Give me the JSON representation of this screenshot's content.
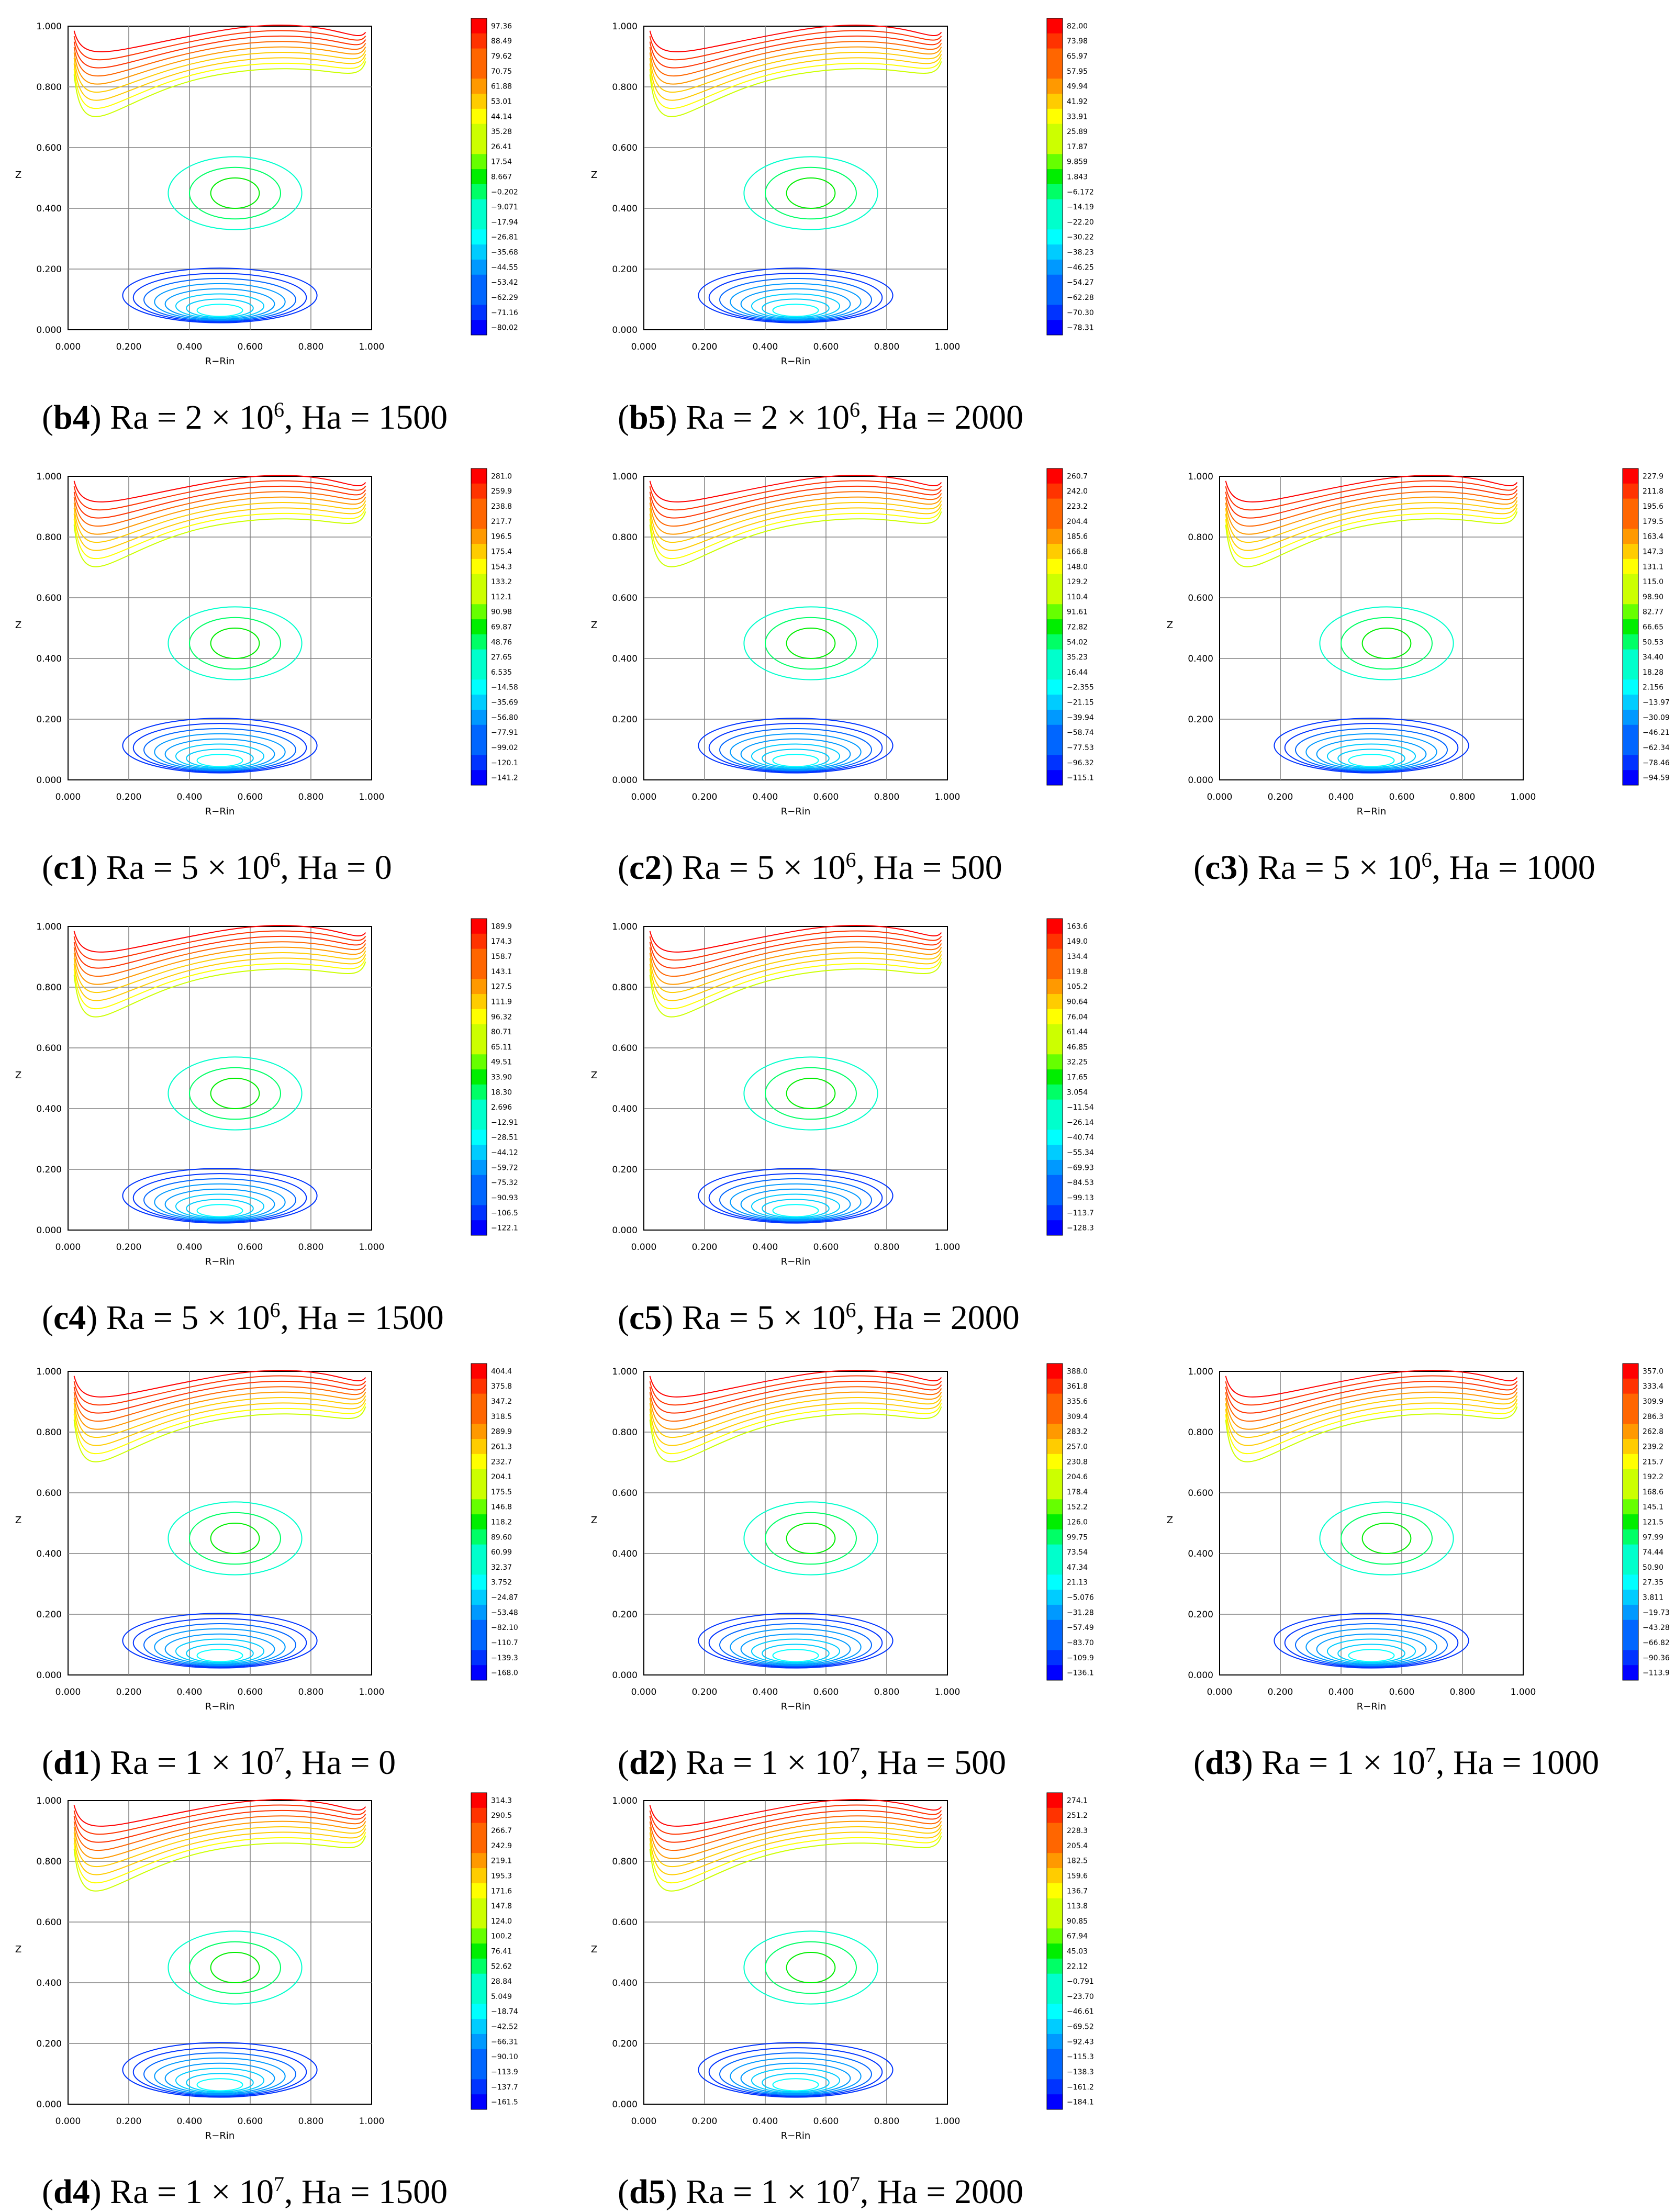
{
  "common": {
    "axis_x_label": "R−Rin",
    "axis_y_label": "Z",
    "ticks": [
      "0.000",
      "0.200",
      "0.400",
      "0.600",
      "0.800",
      "1.000"
    ],
    "colors": {
      "scale": [
        "#0000ff",
        "#0033ff",
        "#0066ff",
        "#0099ff",
        "#00ccff",
        "#00ffff",
        "#00ffcc",
        "#00ff66",
        "#00ee00",
        "#66ff00",
        "#ccff00",
        "#ffff00",
        "#ffcc00",
        "#ff9900",
        "#ff6600",
        "#ff3300",
        "#ff0000"
      ],
      "grid": "#808080"
    }
  },
  "chart_data": [
    {
      "id": "b4",
      "type": "contour",
      "caption": {
        "label": "b4",
        "ra_base": "2",
        "ra_exp": "6",
        "ha": "1500"
      },
      "legend": [
        "97.36",
        "88.49",
        "79.62",
        "70.75",
        "61.88",
        "53.01",
        "44.14",
        "35.28",
        "26.41",
        "17.54",
        "8.667",
        "−0.202",
        "−9.071",
        "−17.94",
        "−26.81",
        "−35.68",
        "−44.55",
        "−53.42",
        "−62.29",
        "−71.16",
        "−80.02"
      ],
      "xlim": [
        0,
        1
      ],
      "ylim": [
        0,
        1
      ]
    },
    {
      "id": "b5",
      "type": "contour",
      "caption": {
        "label": "b5",
        "ra_base": "2",
        "ra_exp": "6",
        "ha": "2000"
      },
      "legend": [
        "82.00",
        "73.98",
        "65.97",
        "57.95",
        "49.94",
        "41.92",
        "33.91",
        "25.89",
        "17.87",
        "9.859",
        "1.843",
        "−6.172",
        "−14.19",
        "−22.20",
        "−30.22",
        "−38.23",
        "−46.25",
        "−54.27",
        "−62.28",
        "−70.30",
        "−78.31"
      ],
      "xlim": [
        0,
        1
      ],
      "ylim": [
        0,
        1
      ]
    },
    {
      "id": "c1",
      "type": "contour",
      "caption": {
        "label": "c1",
        "ra_base": "5",
        "ra_exp": "6",
        "ha": "0"
      },
      "legend": [
        "281.0",
        "259.9",
        "238.8",
        "217.7",
        "196.5",
        "175.4",
        "154.3",
        "133.2",
        "112.1",
        "90.98",
        "69.87",
        "48.76",
        "27.65",
        "6.535",
        "−14.58",
        "−35.69",
        "−56.80",
        "−77.91",
        "−99.02",
        "−120.1",
        "−141.2"
      ],
      "xlim": [
        0,
        1
      ],
      "ylim": [
        0,
        1
      ]
    },
    {
      "id": "c2",
      "type": "contour",
      "caption": {
        "label": "c2",
        "ra_base": "5",
        "ra_exp": "6",
        "ha": "500"
      },
      "legend": [
        "260.7",
        "242.0",
        "223.2",
        "204.4",
        "185.6",
        "166.8",
        "148.0",
        "129.2",
        "110.4",
        "91.61",
        "72.82",
        "54.02",
        "35.23",
        "16.44",
        "−2.355",
        "−21.15",
        "−39.94",
        "−58.74",
        "−77.53",
        "−96.32",
        "−115.1"
      ],
      "xlim": [
        0,
        1
      ],
      "ylim": [
        0,
        1
      ]
    },
    {
      "id": "c3",
      "type": "contour",
      "caption": {
        "label": "c3",
        "ra_base": "5",
        "ra_exp": "6",
        "ha": "1000"
      },
      "legend": [
        "227.9",
        "211.8",
        "195.6",
        "179.5",
        "163.4",
        "147.3",
        "131.1",
        "115.0",
        "98.90",
        "82.77",
        "66.65",
        "50.53",
        "34.40",
        "18.28",
        "2.156",
        "−13.97",
        "−30.09",
        "−46.21",
        "−62.34",
        "−78.46",
        "−94.59"
      ],
      "xlim": [
        0,
        1
      ],
      "ylim": [
        0,
        1
      ]
    },
    {
      "id": "c4",
      "type": "contour",
      "caption": {
        "label": "c4",
        "ra_base": "5",
        "ra_exp": "6",
        "ha": "1500"
      },
      "legend": [
        "189.9",
        "174.3",
        "158.7",
        "143.1",
        "127.5",
        "111.9",
        "96.32",
        "80.71",
        "65.11",
        "49.51",
        "33.90",
        "18.30",
        "2.696",
        "−12.91",
        "−28.51",
        "−44.12",
        "−59.72",
        "−75.32",
        "−90.93",
        "−106.5",
        "−122.1"
      ],
      "xlim": [
        0,
        1
      ],
      "ylim": [
        0,
        1
      ]
    },
    {
      "id": "c5",
      "type": "contour",
      "caption": {
        "label": "c5",
        "ra_base": "5",
        "ra_exp": "6",
        "ha": "2000"
      },
      "legend": [
        "163.6",
        "149.0",
        "134.4",
        "119.8",
        "105.2",
        "90.64",
        "76.04",
        "61.44",
        "46.85",
        "32.25",
        "17.65",
        "3.054",
        "−11.54",
        "−26.14",
        "−40.74",
        "−55.34",
        "−69.93",
        "−84.53",
        "−99.13",
        "−113.7",
        "−128.3"
      ],
      "xlim": [
        0,
        1
      ],
      "ylim": [
        0,
        1
      ]
    },
    {
      "id": "d1",
      "type": "contour",
      "caption": {
        "label": "d1",
        "ra_base": "1",
        "ra_exp": "7",
        "ha": "0"
      },
      "legend": [
        "404.4",
        "375.8",
        "347.2",
        "318.5",
        "289.9",
        "261.3",
        "232.7",
        "204.1",
        "175.5",
        "146.8",
        "118.2",
        "89.60",
        "60.99",
        "32.37",
        "3.752",
        "−24.87",
        "−53.48",
        "−82.10",
        "−110.7",
        "−139.3",
        "−168.0"
      ],
      "xlim": [
        0,
        1
      ],
      "ylim": [
        0,
        1
      ]
    },
    {
      "id": "d2",
      "type": "contour",
      "caption": {
        "label": "d2",
        "ra_base": "1",
        "ra_exp": "7",
        "ha": "500"
      },
      "legend": [
        "388.0",
        "361.8",
        "335.6",
        "309.4",
        "283.2",
        "257.0",
        "230.8",
        "204.6",
        "178.4",
        "152.2",
        "126.0",
        "99.75",
        "73.54",
        "47.34",
        "21.13",
        "−5.076",
        "−31.28",
        "−57.49",
        "−83.70",
        "−109.9",
        "−136.1"
      ],
      "xlim": [
        0,
        1
      ],
      "ylim": [
        0,
        1
      ]
    },
    {
      "id": "d3",
      "type": "contour",
      "caption": {
        "label": "d3",
        "ra_base": "1",
        "ra_exp": "7",
        "ha": "1000"
      },
      "legend": [
        "357.0",
        "333.4",
        "309.9",
        "286.3",
        "262.8",
        "239.2",
        "215.7",
        "192.2",
        "168.6",
        "145.1",
        "121.5",
        "97.99",
        "74.44",
        "50.90",
        "27.35",
        "3.811",
        "−19.73",
        "−43.28",
        "−66.82",
        "−90.36",
        "−113.9"
      ],
      "xlim": [
        0,
        1
      ],
      "ylim": [
        0,
        1
      ]
    },
    {
      "id": "d4",
      "type": "contour",
      "caption": {
        "label": "d4",
        "ra_base": "1",
        "ra_exp": "7",
        "ha": "1500"
      },
      "legend": [
        "314.3",
        "290.5",
        "266.7",
        "242.9",
        "219.1",
        "195.3",
        "171.6",
        "147.8",
        "124.0",
        "100.2",
        "76.41",
        "52.62",
        "28.84",
        "5.049",
        "−18.74",
        "−42.52",
        "−66.31",
        "−90.10",
        "−113.9",
        "−137.7",
        "−161.5"
      ],
      "xlim": [
        0,
        1
      ],
      "ylim": [
        0,
        1
      ]
    },
    {
      "id": "d5",
      "type": "contour",
      "caption": {
        "label": "d5",
        "ra_base": "1",
        "ra_exp": "7",
        "ha": "2000"
      },
      "legend": [
        "274.1",
        "251.2",
        "228.3",
        "205.4",
        "182.5",
        "159.6",
        "136.7",
        "113.8",
        "90.85",
        "67.94",
        "45.03",
        "22.12",
        "−0.791",
        "−23.70",
        "−46.61",
        "−69.52",
        "−92.43",
        "−115.3",
        "−138.3",
        "−161.2",
        "−184.1"
      ],
      "xlim": [
        0,
        1
      ],
      "ylim": [
        0,
        1
      ]
    }
  ]
}
